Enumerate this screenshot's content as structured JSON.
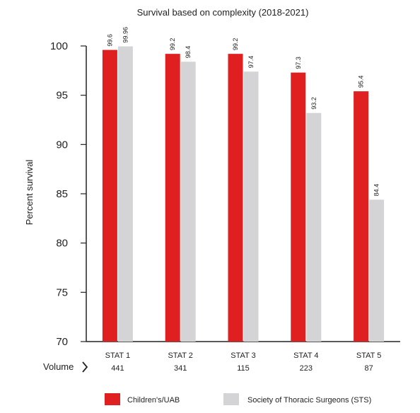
{
  "chart_data": {
    "type": "bar",
    "title": "Survival based on complexity (2018-2021)",
    "ylabel": "Percent survival",
    "ylim": [
      70,
      100
    ],
    "yticks": [
      70,
      75,
      80,
      85,
      90,
      95,
      100
    ],
    "categories": [
      "STAT 1",
      "STAT 2",
      "STAT 3",
      "STAT 4",
      "STAT 5"
    ],
    "volume_label": "Volume",
    "volumes": [
      "441",
      "341",
      "115",
      "223",
      "87"
    ],
    "series": [
      {
        "name": "Children's/UAB",
        "color": "#e02020",
        "values": [
          99.6,
          99.2,
          99.2,
          97.3,
          95.4
        ],
        "labels": [
          "99.6",
          "99.2",
          "99.2",
          "97.3",
          "95.4"
        ]
      },
      {
        "name": "Society of Thoracic Surgeons (STS)",
        "color": "#d4d4d6",
        "values": [
          99.96,
          98.4,
          97.4,
          93.2,
          84.4
        ],
        "labels": [
          "99.96",
          "98.4",
          "97.4",
          "93.2",
          "84.4"
        ]
      }
    ],
    "grid": false,
    "legend_position": "bottom"
  }
}
